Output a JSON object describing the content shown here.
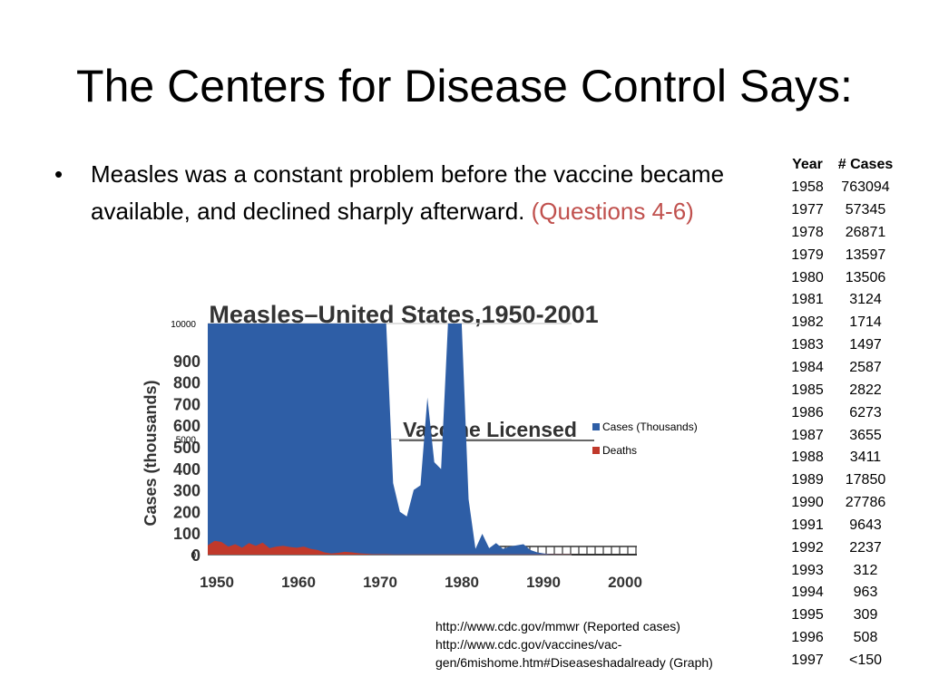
{
  "slide": {
    "title": "The Centers for Disease Control Says:",
    "bullet_text": "Measles was a constant problem before the vaccine became available, and declined sharply afterward.",
    "bullet_note": "(Questions 4-6)"
  },
  "table": {
    "headers": [
      "Year",
      "# Cases"
    ],
    "rows": [
      [
        "1958",
        "763094"
      ],
      [
        "1977",
        "57345"
      ],
      [
        "1978",
        "26871"
      ],
      [
        "1979",
        "13597"
      ],
      [
        "1980",
        "13506"
      ],
      [
        "1981",
        "3124"
      ],
      [
        "1982",
        "1714"
      ],
      [
        "1983",
        "1497"
      ],
      [
        "1984",
        "2587"
      ],
      [
        "1985",
        "2822"
      ],
      [
        "1986",
        "6273"
      ],
      [
        "1987",
        "3655"
      ],
      [
        "1988",
        "3411"
      ],
      [
        "1989",
        "17850"
      ],
      [
        "1990",
        "27786"
      ],
      [
        "1991",
        "9643"
      ],
      [
        "1992",
        "2237"
      ],
      [
        "1993",
        "312"
      ],
      [
        "1994",
        "963"
      ],
      [
        "1995",
        "309"
      ],
      [
        "1996",
        "508"
      ],
      [
        "1997",
        "<150"
      ]
    ]
  },
  "sources": [
    "http://www.cdc.gov/mmwr   (Reported cases)",
    "http://www.cdc.gov/vaccines/vac-",
    "gen/6mishome.htm#Diseaseshadalready  (Graph)"
  ],
  "chart_data": [
    {
      "type": "area",
      "title": "",
      "xlabel": "",
      "ylabel": "",
      "ylim": [
        0,
        10000
      ],
      "yticks": [
        "0",
        "5000",
        "10000"
      ],
      "legend_position": "right",
      "series": [
        {
          "name": "Cases (Thousands)",
          "color": "#2e5ea6",
          "values": [
            10000,
            10000,
            10000,
            10000,
            10000,
            10000,
            10000,
            10000,
            10000,
            10000,
            10000,
            10000,
            10000,
            10000,
            10000,
            10000,
            10000,
            10000,
            10000,
            10000,
            10000,
            10000,
            10000,
            10000,
            10000,
            10000,
            10000,
            3100,
            1850,
            1650,
            2800,
            3000,
            6800,
            4000,
            3700,
            10000,
            10000,
            10000,
            2400,
            250,
            900,
            280,
            500,
            250,
            350,
            400,
            450,
            200,
            100,
            50,
            20,
            15,
            10,
            10
          ]
        },
        {
          "name": "Deaths",
          "color": "#c0392b",
          "values": [
            400,
            600,
            550,
            350,
            450,
            300,
            500,
            380,
            520,
            280,
            350,
            380,
            330,
            300,
            350,
            250,
            200,
            100,
            50,
            80,
            120,
            100,
            60,
            40,
            20,
            20,
            20,
            10,
            10,
            10,
            10,
            10,
            10,
            10,
            10,
            10,
            10,
            10,
            10,
            10,
            10,
            10,
            10,
            10,
            10,
            10,
            10,
            10,
            10,
            10,
            10,
            10,
            10,
            10
          ]
        }
      ]
    },
    {
      "type": "area",
      "title": "Measles–United States,1950-2001",
      "ylabel": "Cases (thousands)",
      "x_tick_labels": [
        "1950",
        "1960",
        "1970",
        "1980",
        "1990",
        "2000"
      ],
      "y_tick_labels": [
        "0",
        "100",
        "200",
        "300",
        "400",
        "500",
        "600",
        "700",
        "800",
        "900"
      ],
      "annotations": [
        "Vaccine Licensed"
      ]
    }
  ]
}
